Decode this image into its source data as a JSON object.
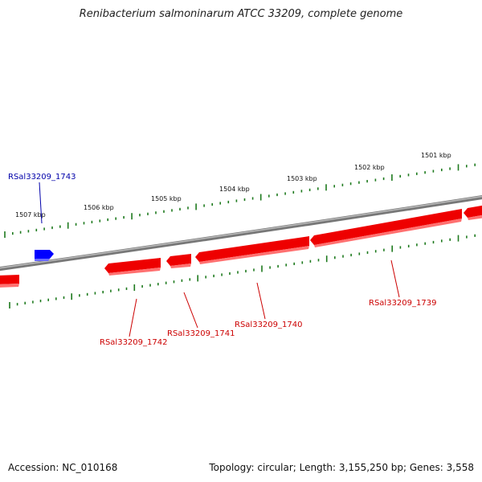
{
  "title": "Renibacterium salmoninarum ATCC 33209, complete genome",
  "footer": {
    "accession": "Accession: NC_010168",
    "summary": "Topology: circular; Length: 3,155,250 bp; Genes: 3,558"
  },
  "scale_labels": [
    "1507 kbp",
    "1506 kbp",
    "1505 kbp",
    "1504 kbp",
    "1503 kbp",
    "1502 kbp",
    "1501 kbp"
  ],
  "genes": [
    {
      "id": "RSal33209_1743",
      "strand": "+",
      "color": "#0000ff"
    },
    {
      "id": "RSal33209_1742",
      "strand": "-",
      "color": "#ff0000"
    },
    {
      "id": "RSal33209_1741",
      "strand": "-",
      "color": "#ff0000"
    },
    {
      "id": "RSal33209_1740",
      "strand": "-",
      "color": "#ff0000"
    },
    {
      "id": "RSal33209_1739",
      "strand": "-",
      "color": "#ff0000"
    }
  ],
  "colors": {
    "backbone": "#888888",
    "forward_gene": "#0000ff",
    "reverse_gene": "#ff0000",
    "ticks": "#1e7a1e",
    "reverse_label": "#cc0000",
    "forward_label": "#0000aa"
  }
}
